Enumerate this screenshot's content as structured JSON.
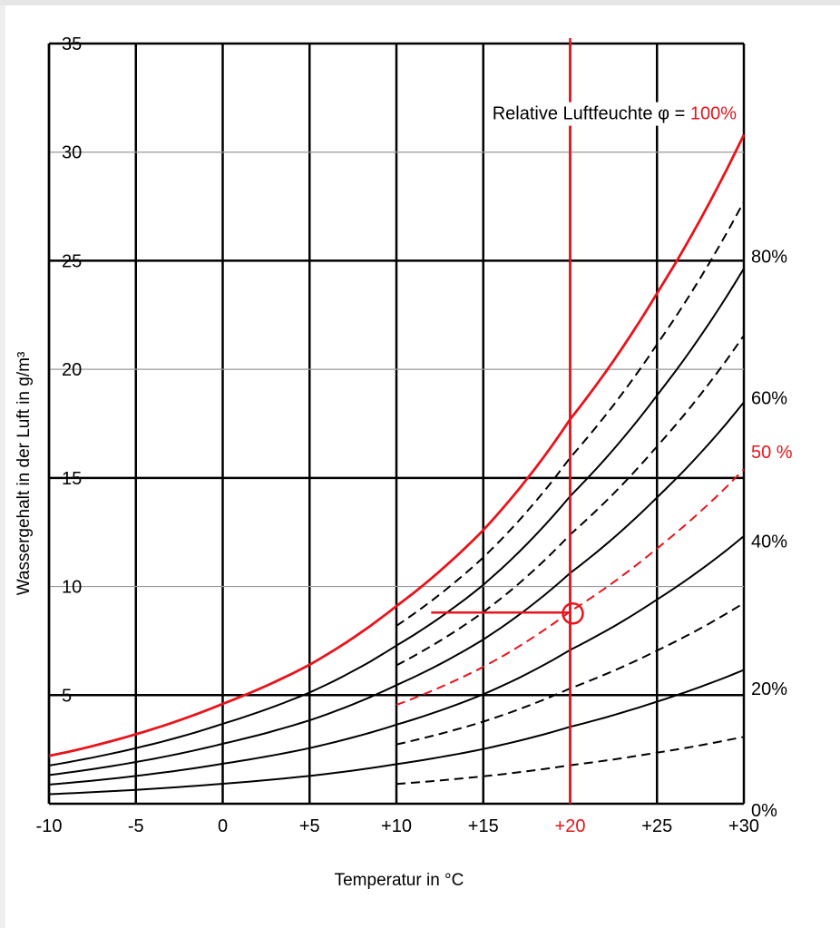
{
  "chart_data": {
    "type": "line",
    "xlabel": "Temperatur in °C",
    "ylabel": "Wassergehalt in der Luft in g/m³",
    "xlim": [
      -10,
      30
    ],
    "ylim": [
      0,
      35
    ],
    "x_ticks": [
      {
        "value": -10,
        "label": "-10"
      },
      {
        "value": -5,
        "label": "-5"
      },
      {
        "value": 0,
        "label": "0"
      },
      {
        "value": 5,
        "label": "+5"
      },
      {
        "value": 10,
        "label": "+10"
      },
      {
        "value": 15,
        "label": "+15"
      },
      {
        "value": 20,
        "label": "+20",
        "highlight": true
      },
      {
        "value": 25,
        "label": "+25"
      },
      {
        "value": 30,
        "label": "+30"
      }
    ],
    "y_ticks": [
      {
        "value": 5,
        "label": "5"
      },
      {
        "value": 10,
        "label": "10"
      },
      {
        "value": 15,
        "label": "15"
      },
      {
        "value": 20,
        "label": "20"
      },
      {
        "value": 25,
        "label": "25"
      },
      {
        "value": 30,
        "label": "30"
      },
      {
        "value": 35,
        "label": "35"
      }
    ],
    "x": [
      -10,
      -5,
      0,
      5,
      10,
      15,
      20,
      25,
      30
    ],
    "saturation_values": [
      2.2,
      3.2,
      4.6,
      6.4,
      9.1,
      12.6,
      17.7,
      23.5,
      30.8
    ],
    "series": [
      {
        "rh": 10,
        "dashed": true,
        "red": false,
        "start_x": 10
      },
      {
        "rh": 20,
        "dashed": false,
        "red": false,
        "start_x": -10
      },
      {
        "rh": 30,
        "dashed": true,
        "red": false,
        "start_x": 10
      },
      {
        "rh": 40,
        "dashed": false,
        "red": false,
        "start_x": -10
      },
      {
        "rh": 50,
        "dashed": true,
        "red": true,
        "start_x": 10
      },
      {
        "rh": 60,
        "dashed": false,
        "red": false,
        "start_x": -10
      },
      {
        "rh": 70,
        "dashed": true,
        "red": false,
        "start_x": 10
      },
      {
        "rh": 80,
        "dashed": false,
        "red": false,
        "start_x": -10
      },
      {
        "rh": 90,
        "dashed": true,
        "red": false,
        "start_x": 10
      },
      {
        "rh": 100,
        "dashed": false,
        "red": true,
        "start_x": -10
      }
    ],
    "right_labels": [
      {
        "text": "80%",
        "y": 25.2,
        "red": false
      },
      {
        "text": "60%",
        "y": 18.7,
        "red": false
      },
      {
        "text": "50 %",
        "y": 16.2,
        "red": true
      },
      {
        "text": "40%",
        "y": 12.1,
        "red": false
      },
      {
        "text": "20%",
        "y": 5.3,
        "red": false
      },
      {
        "text": "0%",
        "y": -0.3,
        "red": false
      }
    ],
    "annotation": {
      "prefix": "Relative Luftfeuchte φ = ",
      "value": "100%",
      "y": 31.8
    },
    "marker": {
      "point": [
        20,
        8.8
      ],
      "hline_from_x": 12,
      "vline_x": 20
    },
    "colors": {
      "highlight": "#e8141b",
      "grid": "#000000",
      "minor_grid": "#999999"
    }
  }
}
